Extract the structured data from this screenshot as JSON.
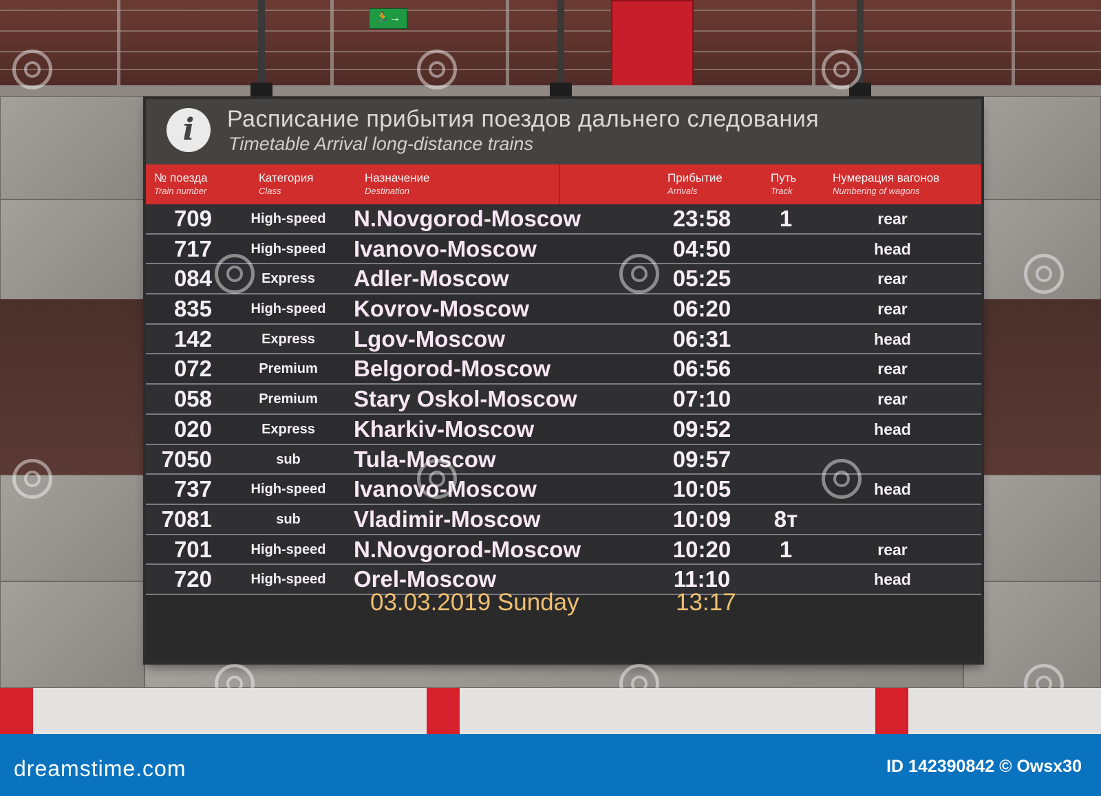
{
  "scene": {
    "exit_sign_glyph": "🏃→"
  },
  "board": {
    "info_icon": "i",
    "title_ru": "Расписание прибытия поездов дальнего следования",
    "title_en": "Timetable Arrival long-distance trains",
    "columns": {
      "number": {
        "ru": "№ поезда",
        "en": "Train number"
      },
      "class": {
        "ru": "Категория",
        "en": "Class"
      },
      "destination": {
        "ru": "Назначение",
        "en": "Destination"
      },
      "arrival": {
        "ru": "Прибытие",
        "en": "Arrivals"
      },
      "track": {
        "ru": "Путь",
        "en": "Track"
      },
      "wagons": {
        "ru": "Нумерация вагонов",
        "en": "Numbering of wagons"
      }
    },
    "rows": [
      {
        "number": "709",
        "class": "High-speed",
        "destination": "N.Novgorod-Moscow",
        "arrival": "23:58",
        "track": "1",
        "wagons": "rear"
      },
      {
        "number": "717",
        "class": "High-speed",
        "destination": "Ivanovo-Moscow",
        "arrival": "04:50",
        "track": "",
        "wagons": "head"
      },
      {
        "number": "084",
        "class": "Express",
        "destination": "Adler-Moscow",
        "arrival": "05:25",
        "track": "",
        "wagons": "rear"
      },
      {
        "number": "835",
        "class": "High-speed",
        "destination": "Kovrov-Moscow",
        "arrival": "06:20",
        "track": "",
        "wagons": "rear"
      },
      {
        "number": "142",
        "class": "Express",
        "destination": "Lgov-Moscow",
        "arrival": "06:31",
        "track": "",
        "wagons": "head"
      },
      {
        "number": "072",
        "class": "Premium",
        "destination": "Belgorod-Moscow",
        "arrival": "06:56",
        "track": "",
        "wagons": "rear"
      },
      {
        "number": "058",
        "class": "Premium",
        "destination": "Stary Oskol-Moscow",
        "arrival": "07:10",
        "track": "",
        "wagons": "rear"
      },
      {
        "number": "020",
        "class": "Express",
        "destination": "Kharkiv-Moscow",
        "arrival": "09:52",
        "track": "",
        "wagons": "head"
      },
      {
        "number": "7050",
        "class": "sub",
        "destination": "Tula-Moscow",
        "arrival": "09:57",
        "track": "",
        "wagons": ""
      },
      {
        "number": "737",
        "class": "High-speed",
        "destination": "Ivanovo-Moscow",
        "arrival": "10:05",
        "track": "",
        "wagons": "head"
      },
      {
        "number": "7081",
        "class": "sub",
        "destination": "Vladimir-Moscow",
        "arrival": "10:09",
        "track": "8т",
        "wagons": ""
      },
      {
        "number": "701",
        "class": "High-speed",
        "destination": "N.Novgorod-Moscow",
        "arrival": "10:20",
        "track": "1",
        "wagons": "rear"
      },
      {
        "number": "720",
        "class": "High-speed",
        "destination": "Orel-Moscow",
        "arrival": "11:10",
        "track": "",
        "wagons": "head"
      }
    ],
    "footer_date": "03.03.2019 Sunday",
    "footer_time": "13:17"
  },
  "watermark": {
    "site": "dreamstime.com",
    "id_text": "ID 142390842 © Owsx30"
  },
  "colors": {
    "header_red": "#d12d2d",
    "footer_blue": "#0a73bf",
    "clock_amber": "#f0c070"
  }
}
